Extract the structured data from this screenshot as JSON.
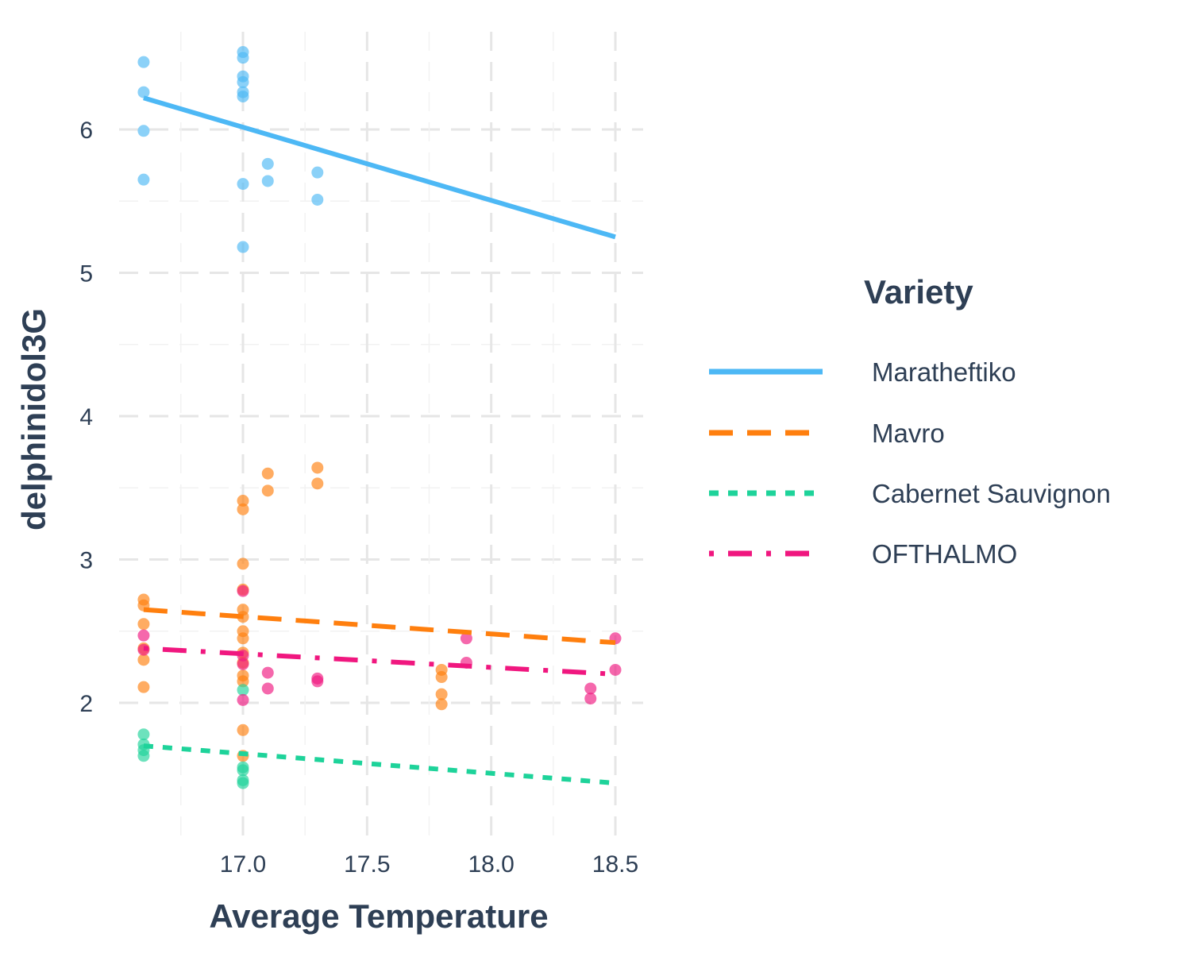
{
  "chart_data": {
    "type": "scatter",
    "xlabel": "Average Temperature",
    "ylabel": "delphinidol3G",
    "xlim": [
      16.5,
      18.6
    ],
    "ylim": [
      1.2,
      6.8
    ],
    "x_ticks": [
      17.0,
      17.5,
      18.0,
      18.5
    ],
    "x_tick_labels": [
      "17.0",
      "17.5",
      "18.0",
      "18.5"
    ],
    "y_ticks": [
      2,
      3,
      4,
      5,
      6
    ],
    "y_tick_labels": [
      "2",
      "3",
      "4",
      "5",
      "6"
    ],
    "grid": true,
    "grid_style": "dashed",
    "legend_position": "right",
    "legend": {
      "title": "Variety",
      "entries": [
        "Maratheftiko",
        "Mavro",
        "Cabernet Sauvignon",
        "OFTHALMO"
      ]
    },
    "series": [
      {
        "name": "Maratheftiko",
        "color": "#4db8f5",
        "line_style": "solid",
        "trend": [
          [
            16.6,
            6.22
          ],
          [
            18.5,
            5.25
          ]
        ],
        "points": [
          [
            16.6,
            6.47
          ],
          [
            16.6,
            6.26
          ],
          [
            16.6,
            5.99
          ],
          [
            16.6,
            5.65
          ],
          [
            17.0,
            6.54
          ],
          [
            17.0,
            6.5
          ],
          [
            17.0,
            6.37
          ],
          [
            17.0,
            6.33
          ],
          [
            17.0,
            6.26
          ],
          [
            17.0,
            6.23
          ],
          [
            17.0,
            5.62
          ],
          [
            17.0,
            5.18
          ],
          [
            17.1,
            5.76
          ],
          [
            17.1,
            5.64
          ],
          [
            17.3,
            5.7
          ],
          [
            17.3,
            5.51
          ]
        ]
      },
      {
        "name": "Mavro",
        "color": "#ff7f0e",
        "line_style": "dashed",
        "trend": [
          [
            16.6,
            2.65
          ],
          [
            18.5,
            2.42
          ]
        ],
        "points": [
          [
            16.6,
            2.72
          ],
          [
            16.6,
            2.68
          ],
          [
            16.6,
            2.55
          ],
          [
            16.6,
            2.38
          ],
          [
            16.6,
            2.3
          ],
          [
            16.6,
            2.11
          ],
          [
            17.0,
            3.41
          ],
          [
            17.0,
            3.35
          ],
          [
            17.0,
            2.97
          ],
          [
            17.0,
            2.79
          ],
          [
            17.0,
            2.65
          ],
          [
            17.0,
            2.6
          ],
          [
            17.0,
            2.5
          ],
          [
            17.0,
            2.45
          ],
          [
            17.0,
            2.35
          ],
          [
            17.0,
            2.28
          ],
          [
            17.0,
            2.19
          ],
          [
            17.0,
            2.15
          ],
          [
            17.0,
            1.81
          ],
          [
            17.0,
            1.63
          ],
          [
            17.1,
            3.6
          ],
          [
            17.1,
            3.48
          ],
          [
            17.3,
            3.64
          ],
          [
            17.3,
            3.53
          ],
          [
            17.8,
            2.23
          ],
          [
            17.8,
            2.18
          ],
          [
            17.8,
            2.06
          ],
          [
            17.8,
            1.99
          ]
        ]
      },
      {
        "name": "Cabernet Sauvignon",
        "color": "#1ed39a",
        "line_style": "dotted",
        "trend": [
          [
            16.6,
            1.7
          ],
          [
            18.5,
            1.44
          ]
        ],
        "points": [
          [
            16.6,
            1.78
          ],
          [
            16.6,
            1.71
          ],
          [
            16.6,
            1.67
          ],
          [
            16.6,
            1.63
          ],
          [
            17.0,
            2.09
          ],
          [
            17.0,
            1.55
          ],
          [
            17.0,
            1.53
          ],
          [
            17.0,
            1.46
          ],
          [
            17.0,
            1.44
          ]
        ]
      },
      {
        "name": "OFTHALMO",
        "color": "#f0177f",
        "line_style": "dotdash",
        "trend": [
          [
            16.6,
            2.38
          ],
          [
            18.5,
            2.2
          ]
        ],
        "points": [
          [
            16.6,
            2.47
          ],
          [
            16.6,
            2.37
          ],
          [
            17.0,
            2.78
          ],
          [
            17.0,
            2.33
          ],
          [
            17.0,
            2.27
          ],
          [
            17.0,
            2.02
          ],
          [
            17.1,
            2.21
          ],
          [
            17.1,
            2.1
          ],
          [
            17.3,
            2.17
          ],
          [
            17.3,
            2.15
          ],
          [
            17.9,
            2.45
          ],
          [
            17.9,
            2.28
          ],
          [
            18.4,
            2.1
          ],
          [
            18.4,
            2.03
          ],
          [
            18.5,
            2.45
          ],
          [
            18.5,
            2.23
          ]
        ]
      }
    ]
  }
}
